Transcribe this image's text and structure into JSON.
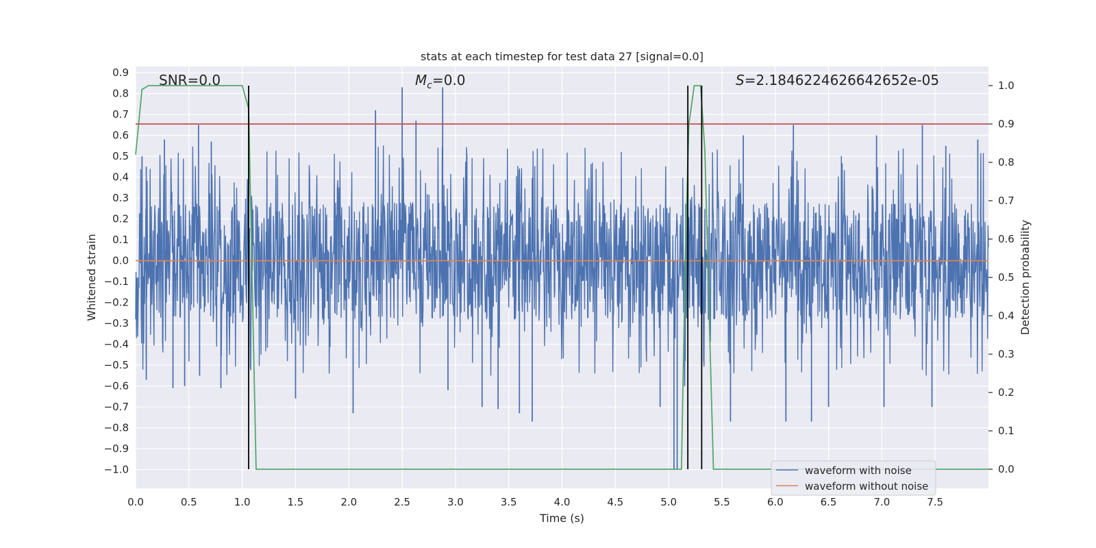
{
  "chart_data": {
    "type": "line",
    "title": "stats at each timestep for test data 27 [signal=0.0]",
    "xlabel": "Time (s)",
    "ylabel": "Whitened strain",
    "y2label": "Detection probability",
    "xlim": [
      0.0,
      8.0
    ],
    "ylim": [
      -1.09,
      0.93
    ],
    "y2lim": [
      -0.05,
      1.05
    ],
    "xticks": [
      "0.0",
      "0.5",
      "1.0",
      "1.5",
      "2.0",
      "2.5",
      "3.0",
      "3.5",
      "4.0",
      "4.5",
      "5.0",
      "5.5",
      "6.0",
      "6.5",
      "7.0",
      "7.5"
    ],
    "yticks": [
      "0.9",
      "0.8",
      "0.7",
      "0.6",
      "0.5",
      "0.4",
      "0.3",
      "0.2",
      "0.1",
      "0.0",
      "−0.1",
      "−0.2",
      "−0.3",
      "−0.4",
      "−0.5",
      "−0.6",
      "−0.7",
      "−0.8",
      "−0.9",
      "−1.0"
    ],
    "y2ticks": [
      "1.0",
      "0.9",
      "0.8",
      "0.7",
      "0.6",
      "0.5",
      "0.4",
      "0.3",
      "0.2",
      "0.1",
      "0.0"
    ],
    "annotations": {
      "snr": "SNR=0.0",
      "mc_symbol": "M",
      "mc_sub": "c",
      "mc_value": "=0.0",
      "s_symbol": "S",
      "s_value": "=2.1846224626642652e-05"
    },
    "noise": {
      "core_amplitude": 0.28,
      "typical_spike_max": 0.55,
      "sample_step_s": 0.004
    },
    "spikes": [
      {
        "t": 0.06,
        "v": 0.5
      },
      {
        "t": 0.1,
        "v": -0.46
      },
      {
        "t": 0.1,
        "v": 0.45
      },
      {
        "t": 0.1,
        "v": -0.57
      },
      {
        "t": 0.27,
        "v": 0.58
      },
      {
        "t": 0.35,
        "v": -0.61
      },
      {
        "t": 0.46,
        "v": -0.6
      },
      {
        "t": 0.59,
        "v": 0.65
      },
      {
        "t": 0.6,
        "v": -0.55
      },
      {
        "t": 0.71,
        "v": 0.57
      },
      {
        "t": 0.8,
        "v": -0.61
      },
      {
        "t": 1.5,
        "v": -0.66
      },
      {
        "t": 2.04,
        "v": -0.73
      },
      {
        "t": 2.25,
        "v": 0.72
      },
      {
        "t": 2.5,
        "v": 0.83
      },
      {
        "t": 2.63,
        "v": 0.67
      },
      {
        "t": 2.88,
        "v": 0.83
      },
      {
        "t": 2.93,
        "v": -0.62
      },
      {
        "t": 3.25,
        "v": -0.7
      },
      {
        "t": 3.4,
        "v": -0.71
      },
      {
        "t": 3.6,
        "v": -0.73
      },
      {
        "t": 3.72,
        "v": -0.77
      },
      {
        "t": 4.92,
        "v": -0.7
      },
      {
        "t": 5.05,
        "v": -1.0
      },
      {
        "t": 5.08,
        "v": -1.0
      },
      {
        "t": 5.15,
        "v": -0.6
      },
      {
        "t": 5.58,
        "v": -0.77
      },
      {
        "t": 5.7,
        "v": 0.6
      },
      {
        "t": 6.1,
        "v": -0.77
      },
      {
        "t": 6.17,
        "v": 0.65
      },
      {
        "t": 6.34,
        "v": -0.77
      },
      {
        "t": 6.5,
        "v": -0.7
      },
      {
        "t": 6.95,
        "v": 0.6
      },
      {
        "t": 7.02,
        "v": -0.7
      },
      {
        "t": 7.38,
        "v": 0.65
      },
      {
        "t": 7.47,
        "v": -0.7
      },
      {
        "t": 7.6,
        "v": 0.55
      },
      {
        "t": 7.9,
        "v": 0.58
      }
    ],
    "series": [
      {
        "name": "waveform with noise",
        "axis": "left",
        "color": "#4c72b0"
      },
      {
        "name": "waveform without noise",
        "axis": "left",
        "color": "#dd8452",
        "points": [
          [
            0.0,
            0.0
          ],
          [
            8.0,
            0.0
          ]
        ]
      },
      {
        "name": "detection probability",
        "axis": "right",
        "color": "#55a868",
        "points": [
          [
            0.0,
            0.82
          ],
          [
            0.06,
            0.99
          ],
          [
            0.12,
            1.0
          ],
          [
            0.3,
            1.0
          ],
          [
            0.6,
            1.0
          ],
          [
            1.0,
            1.0
          ],
          [
            1.06,
            0.94
          ],
          [
            1.1,
            0.4
          ],
          [
            1.13,
            0.0
          ],
          [
            1.5,
            0.0
          ],
          [
            3.0,
            0.0
          ],
          [
            5.12,
            0.0
          ],
          [
            5.16,
            0.6
          ],
          [
            5.19,
            0.9
          ],
          [
            5.24,
            1.0
          ],
          [
            5.3,
            1.0
          ],
          [
            5.34,
            0.83
          ],
          [
            5.38,
            0.4
          ],
          [
            5.42,
            0.0
          ],
          [
            6.0,
            0.0
          ],
          [
            8.0,
            0.0
          ]
        ]
      },
      {
        "name": "threshold",
        "axis": "right",
        "color": "#c44e52",
        "points": [
          [
            0.0,
            0.9
          ],
          [
            8.0,
            0.9
          ]
        ]
      }
    ],
    "vlines": [
      1.06,
      5.18,
      5.31
    ],
    "vline_range": [
      0.0,
      1.0
    ],
    "vline_color": "#000000",
    "legend": {
      "position": "lower-right",
      "entries": [
        {
          "label": "waveform with noise",
          "color": "#4c72b0"
        },
        {
          "label": "waveform without noise",
          "color": "#dd8452"
        }
      ]
    },
    "style": {
      "axes_bg": "#eaeaf2",
      "grid": "#ffffff",
      "grid_on": true
    }
  }
}
